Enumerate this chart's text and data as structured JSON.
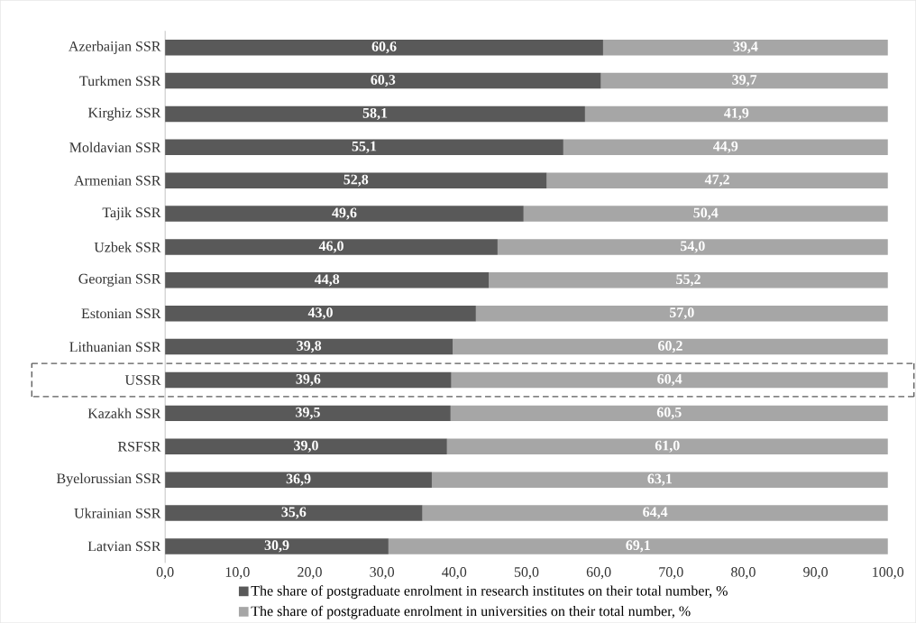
{
  "chart_data": {
    "type": "bar",
    "orientation": "horizontal",
    "stacked": true,
    "categories": [
      "Azerbaijan SSR",
      "Turkmen SSR",
      "Kirghiz SSR",
      "Moldavian SSR",
      "Armenian SSR",
      "Tajik SSR",
      "Uzbek SSR",
      "Georgian SSR",
      "Estonian SSR",
      "Lithuanian SSR",
      "USSR",
      "Kazakh SSR",
      "RSFSR",
      "Byelorussian SSR",
      "Ukrainian SSR",
      "Latvian SSR"
    ],
    "series": [
      {
        "name": "The share of postgraduate enrolment in research institutes on their total number, %",
        "color": "#595959",
        "values": [
          60.6,
          60.3,
          58.1,
          55.1,
          52.8,
          49.6,
          46.0,
          44.8,
          43.0,
          39.8,
          39.6,
          39.5,
          39.0,
          36.9,
          35.6,
          30.9
        ],
        "value_labels": [
          "60,6",
          "60,3",
          "58,1",
          "55,1",
          "52,8",
          "49,6",
          "46,0",
          "44,8",
          "43,0",
          "39,8",
          "39,6",
          "39,5",
          "39,0",
          "36,9",
          "35,6",
          "30,9"
        ]
      },
      {
        "name": "The share of postgraduate enrolment in universities on their total number, %",
        "color": "#a6a6a6",
        "values": [
          39.4,
          39.7,
          41.9,
          44.9,
          47.2,
          50.4,
          54.0,
          55.2,
          57.0,
          60.2,
          60.4,
          60.5,
          61.0,
          63.1,
          64.4,
          69.1
        ],
        "value_labels": [
          "39,4",
          "39,7",
          "41,9",
          "44,9",
          "47,2",
          "50,4",
          "54,0",
          "55,2",
          "57,0",
          "60,2",
          "60,4",
          "60,5",
          "61,0",
          "63,1",
          "64,4",
          "69,1"
        ]
      }
    ],
    "xlim": [
      0,
      100
    ],
    "xticks": [
      {
        "value": 0,
        "label": "0,0"
      },
      {
        "value": 10,
        "label": "10,0"
      },
      {
        "value": 20,
        "label": "20,0"
      },
      {
        "value": 30,
        "label": "30,0"
      },
      {
        "value": 40,
        "label": "40,0"
      },
      {
        "value": 50,
        "label": "50,0"
      },
      {
        "value": 60,
        "label": "60,0"
      },
      {
        "value": 70,
        "label": "70,0"
      },
      {
        "value": 80,
        "label": "80,0"
      },
      {
        "value": 90,
        "label": "90,0"
      },
      {
        "value": 100,
        "label": "100,0"
      }
    ],
    "legend": "bottom"
  }
}
